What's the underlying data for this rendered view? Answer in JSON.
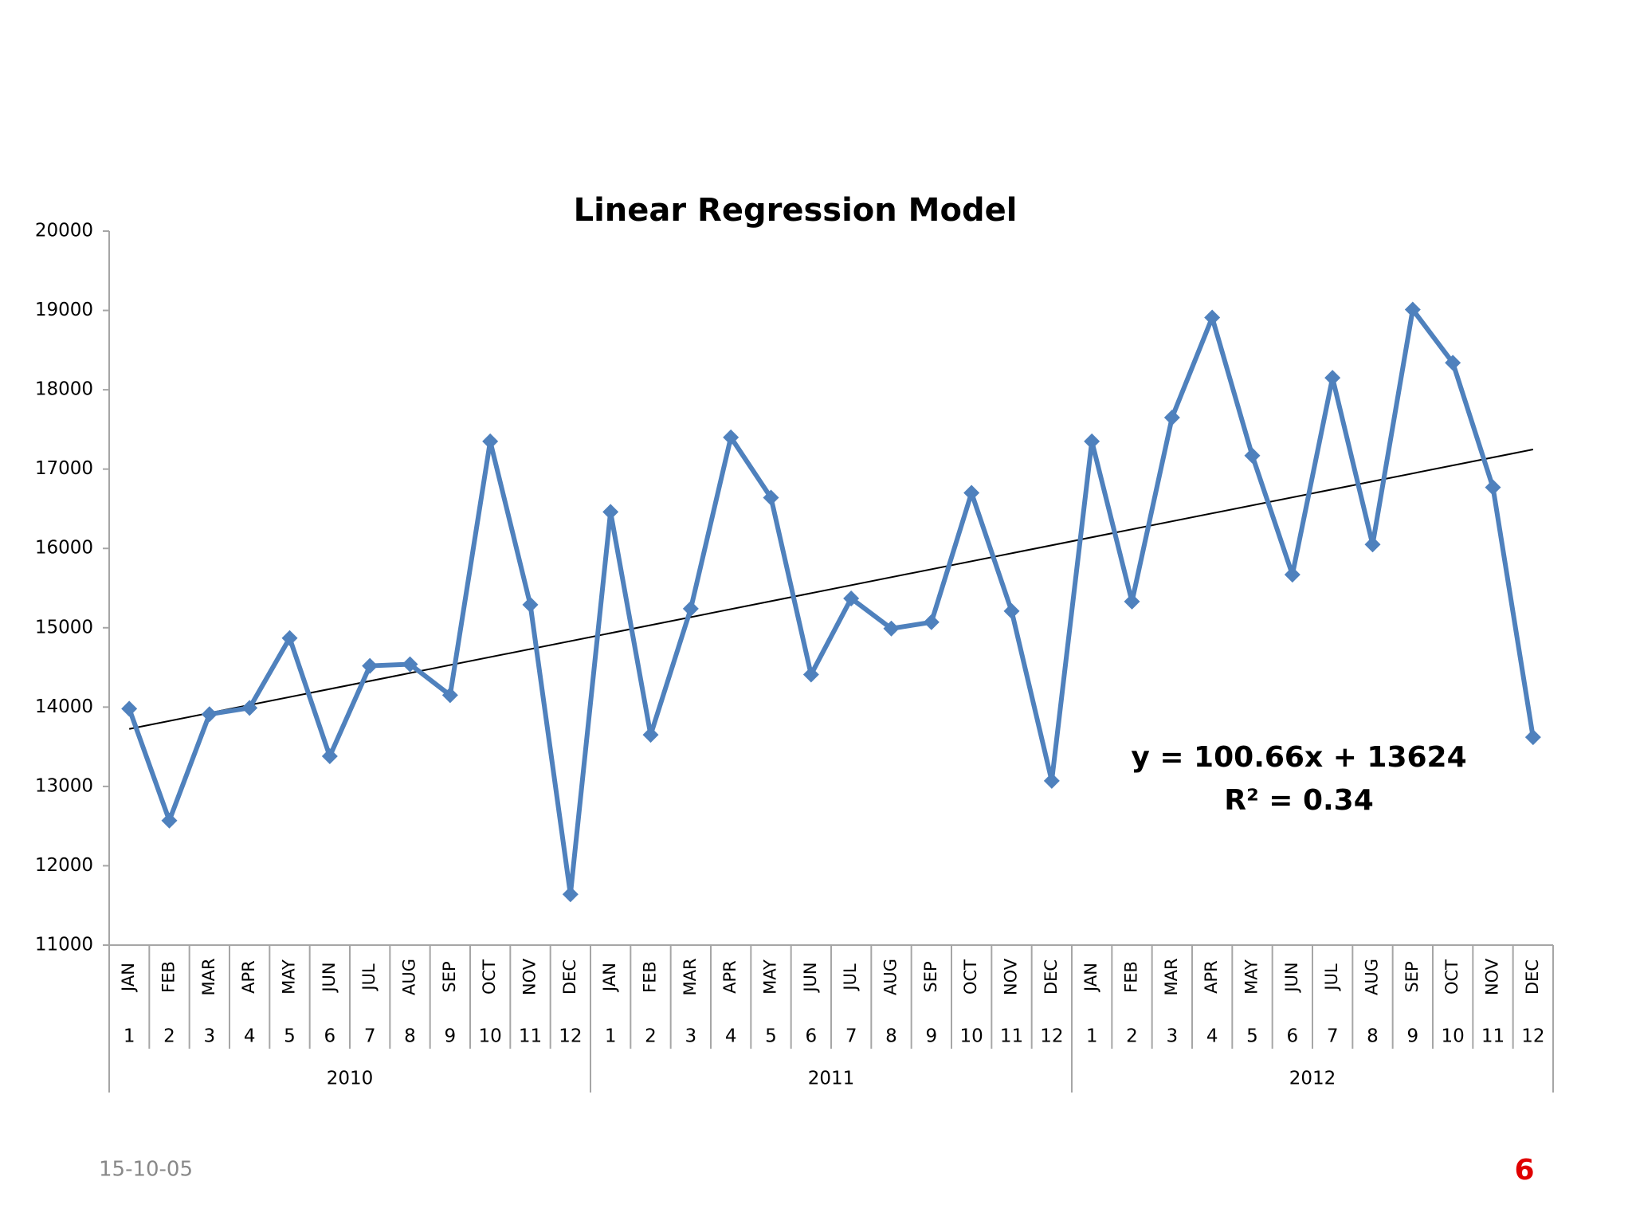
{
  "chart_data": {
    "type": "line",
    "title": "Linear Regression Model",
    "categories": [
      "JAN",
      "FEB",
      "MAR",
      "APR",
      "MAY",
      "JUN",
      "JUL",
      "AUG",
      "SEP",
      "OCT",
      "NOV",
      "DEC",
      "JAN",
      "FEB",
      "MAR",
      "APR",
      "MAY",
      "JUN",
      "JUL",
      "AUG",
      "SEP",
      "OCT",
      "NOV",
      "DEC",
      "JAN",
      "FEB",
      "MAR",
      "APR",
      "MAY",
      "JUN",
      "JUL",
      "AUG",
      "SEP",
      "OCT",
      "NOV",
      "DEC"
    ],
    "sub_categories": [
      "1",
      "2",
      "3",
      "4",
      "5",
      "6",
      "7",
      "8",
      "9",
      "10",
      "11",
      "12",
      "1",
      "2",
      "3",
      "4",
      "5",
      "6",
      "7",
      "8",
      "9",
      "10",
      "11",
      "12",
      "1",
      "2",
      "3",
      "4",
      "5",
      "6",
      "7",
      "8",
      "9",
      "10",
      "11",
      "12"
    ],
    "groups": [
      "2010",
      "2011",
      "2012"
    ],
    "series": [
      {
        "color": "#4f81bd",
        "values": [
          13980,
          12570,
          13910,
          13990,
          14870,
          13380,
          14520,
          14540,
          14150,
          17350,
          15290,
          11640,
          16460,
          13650,
          15240,
          17400,
          16640,
          14410,
          15370,
          14990,
          15070,
          16700,
          15210,
          13070,
          17350,
          15330,
          17650,
          18910,
          17170,
          15670,
          18150,
          16050,
          19010,
          18340,
          16770,
          13620
        ]
      }
    ],
    "trendline": {
      "equation": "y = 100.66x + 13624",
      "r_squared_label": "R² = 0.34",
      "slope": 100.66,
      "intercept": 13624,
      "r_squared": 0.34,
      "color": "#000000"
    },
    "ylim": [
      11000,
      20000
    ],
    "yticks": [
      11000,
      12000,
      13000,
      14000,
      15000,
      16000,
      17000,
      18000,
      19000,
      20000
    ],
    "grid": false
  },
  "footer": {
    "date": "15-10-05",
    "page": "6"
  }
}
